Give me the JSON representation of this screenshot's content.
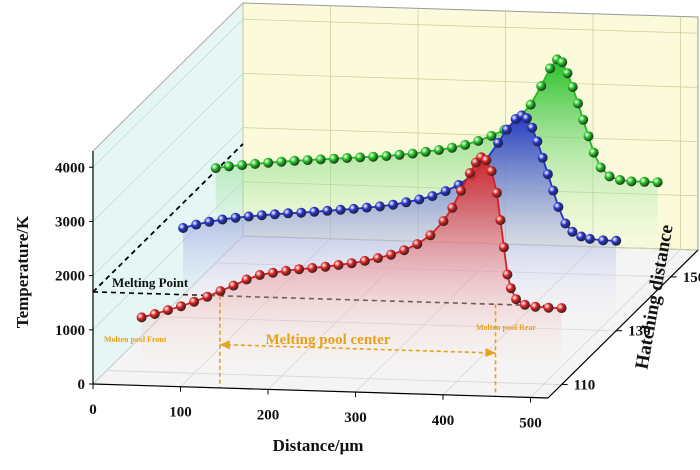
{
  "chart_data": {
    "type": "line",
    "xlabel": "Distance/μm",
    "ylabel": "Temperature/K",
    "zlabel": "Hatching distance",
    "x_ticks": [
      "0",
      "100",
      "200",
      "300",
      "400",
      "500"
    ],
    "y_ticks": [
      "0",
      "1000",
      "2000",
      "3000",
      "4000"
    ],
    "z_ticks": [
      "110",
      "130",
      "150"
    ],
    "xlim": [
      0,
      520
    ],
    "ylim": [
      0,
      4300
    ],
    "zlim": [
      105,
      160
    ],
    "melting_point": {
      "label": "Melting Point",
      "value": 1700
    },
    "annotations": {
      "front": "Molten pool Front",
      "center": "Melting pool center",
      "rear": "Molten pool Rear",
      "front_x": 145,
      "rear_x": 460
    },
    "series": [
      {
        "name": "110",
        "z": 110,
        "color": "#d81f1f",
        "x": [
          40,
          55,
          70,
          85,
          100,
          115,
          130,
          145,
          160,
          175,
          190,
          205,
          220,
          235,
          250,
          265,
          280,
          295,
          310,
          325,
          340,
          355,
          370,
          385,
          395,
          405,
          415,
          422,
          428,
          434,
          440,
          446,
          450,
          454,
          458,
          462,
          468,
          478,
          490,
          505,
          520
        ],
        "y": [
          1000,
          1070,
          1150,
          1230,
          1320,
          1420,
          1530,
          1640,
          1760,
          1850,
          1900,
          1940,
          1980,
          2010,
          2040,
          2080,
          2120,
          2170,
          2230,
          2300,
          2390,
          2510,
          2680,
          2950,
          3200,
          3520,
          3850,
          4050,
          4150,
          4100,
          3900,
          3500,
          3000,
          2500,
          2000,
          1750,
          1550,
          1450,
          1420,
          1410,
          1410
        ]
      },
      {
        "name": "130",
        "z": 130,
        "color": "#2231c8",
        "x": [
          25,
          40,
          55,
          70,
          85,
          100,
          115,
          130,
          145,
          160,
          175,
          190,
          205,
          220,
          235,
          250,
          265,
          280,
          295,
          310,
          325,
          340,
          355,
          370,
          385,
          395,
          405,
          412,
          418,
          424,
          430,
          436,
          442,
          448,
          454,
          462,
          470,
          480,
          490,
          505,
          520
        ],
        "y": [
          1650,
          1720,
          1780,
          1830,
          1870,
          1900,
          1930,
          1955,
          1980,
          2000,
          2025,
          2050,
          2075,
          2100,
          2130,
          2160,
          2200,
          2250,
          2310,
          2380,
          2480,
          2600,
          2780,
          3050,
          3400,
          3650,
          3850,
          3920,
          3870,
          3700,
          3450,
          3150,
          2850,
          2550,
          2250,
          1950,
          1800,
          1720,
          1680,
          1660,
          1660
        ]
      },
      {
        "name": "150",
        "z": 150,
        "color": "#1dbd1d",
        "x": [
          0,
          15,
          30,
          45,
          60,
          75,
          90,
          105,
          120,
          135,
          150,
          165,
          180,
          195,
          210,
          225,
          240,
          255,
          270,
          285,
          300,
          315,
          330,
          345,
          360,
          372,
          382,
          390,
          396,
          402,
          408,
          414,
          420,
          426,
          432,
          440,
          450,
          462,
          475,
          490,
          505
        ],
        "y": [
          1750,
          1790,
          1820,
          1850,
          1880,
          1905,
          1930,
          1950,
          1970,
          1990,
          2010,
          2030,
          2050,
          2070,
          2100,
          2130,
          2170,
          2210,
          2260,
          2320,
          2400,
          2500,
          2620,
          2820,
          3100,
          3450,
          3780,
          3950,
          3900,
          3700,
          3450,
          3150,
          2850,
          2550,
          2250,
          1980,
          1820,
          1760,
          1740,
          1740,
          1740
        ]
      }
    ]
  }
}
